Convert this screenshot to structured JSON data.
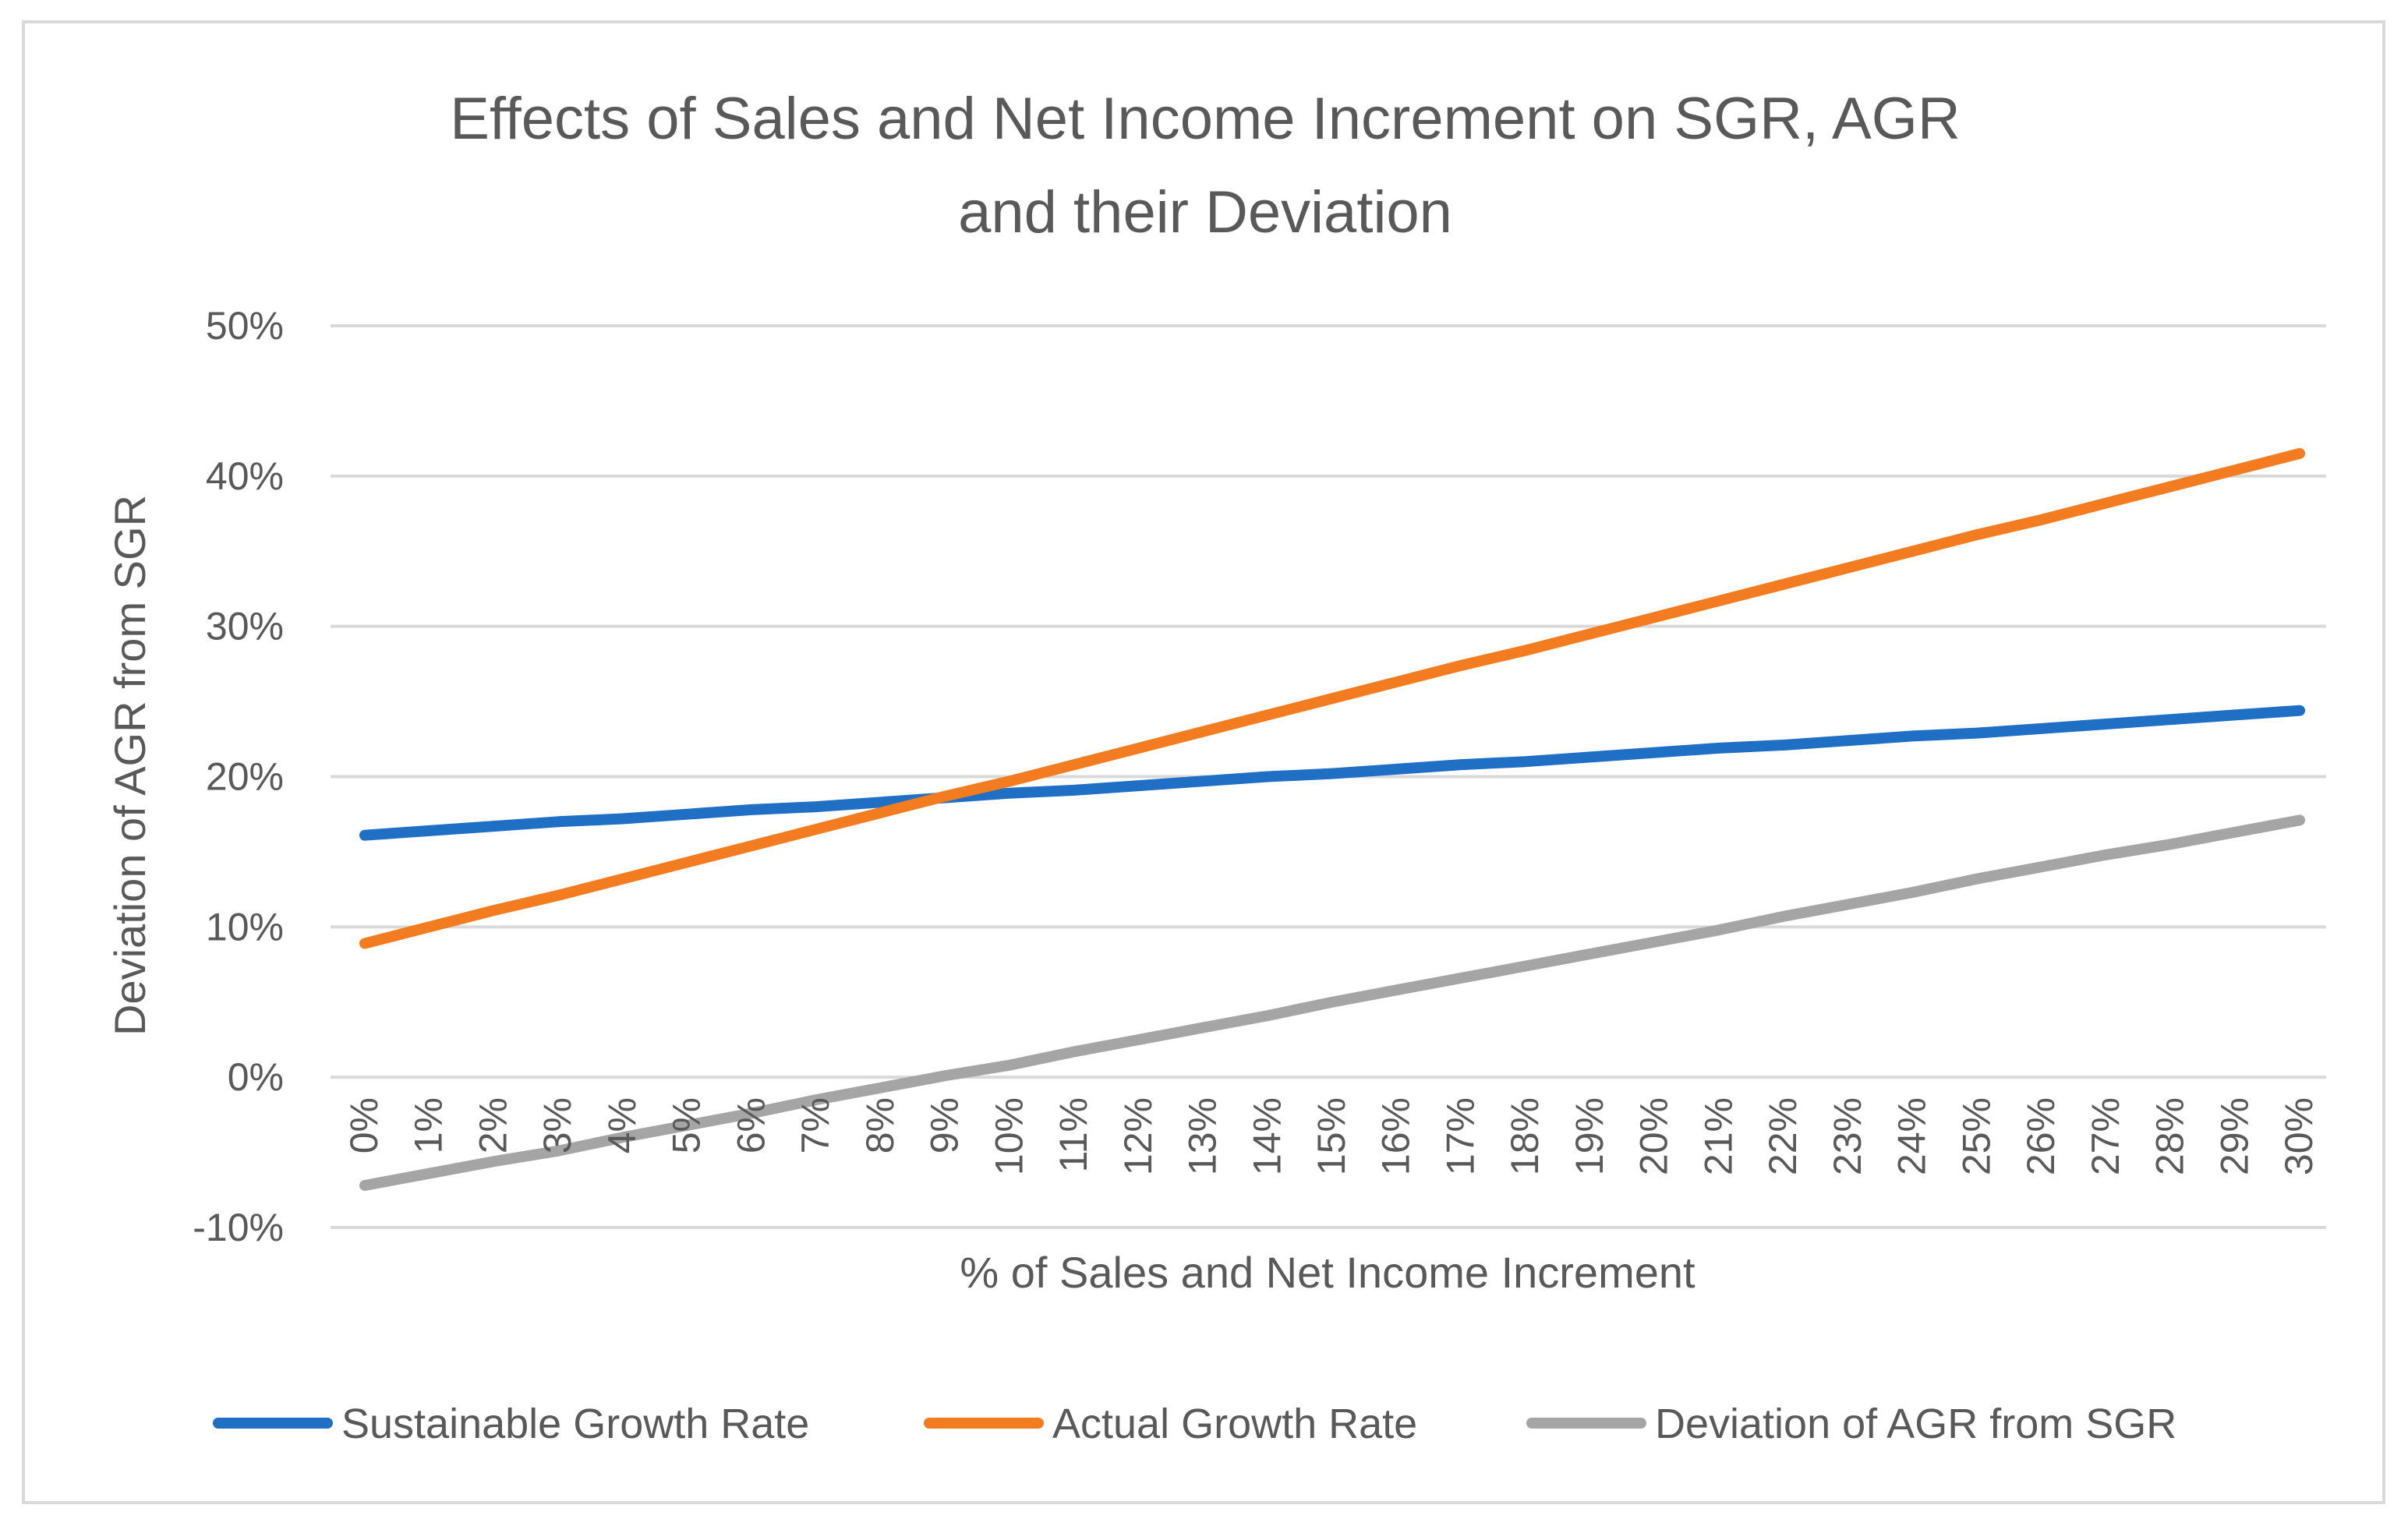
{
  "chart_data": {
    "type": "line",
    "title_lines": [
      "Effects of Sales and Net Income Increment on SGR, AGR",
      "and their Deviation"
    ],
    "xlabel": "% of Sales and Net Income Increment",
    "ylabel": "Deviation of AGR from SGR",
    "ylim": [
      -10,
      50
    ],
    "y_ticks": [
      50,
      40,
      30,
      20,
      10,
      0,
      -10
    ],
    "y_tick_labels": [
      "50%",
      "40%",
      "30%",
      "20%",
      "10%",
      "0%",
      "-10%"
    ],
    "categories": [
      "0%",
      "1%",
      "2%",
      "3%",
      "4%",
      "5%",
      "6%",
      "7%",
      "8%",
      "9%",
      "10%",
      "11%",
      "12%",
      "13%",
      "14%",
      "15%",
      "16%",
      "17%",
      "18%",
      "19%",
      "20%",
      "21%",
      "22%",
      "23%",
      "24%",
      "25%",
      "26%",
      "27%",
      "28%",
      "29%",
      "30%"
    ],
    "grid": true,
    "legend_position": "bottom",
    "series": [
      {
        "name": "Sustainable Growth Rate",
        "color": "#1f6fc5",
        "values": [
          16.1,
          16.4,
          16.7,
          17.0,
          17.2,
          17.5,
          17.8,
          18.0,
          18.3,
          18.6,
          18.9,
          19.1,
          19.4,
          19.7,
          20.0,
          20.2,
          20.5,
          20.8,
          21.0,
          21.3,
          21.6,
          21.9,
          22.1,
          22.4,
          22.7,
          22.9,
          23.2,
          23.5,
          23.8,
          24.1,
          24.4
        ]
      },
      {
        "name": "Actual Growth Rate",
        "color": "#f47c20",
        "values": [
          8.9,
          10.0,
          11.1,
          12.1,
          13.2,
          14.3,
          15.4,
          16.5,
          17.6,
          18.7,
          19.7,
          20.8,
          21.9,
          23.0,
          24.1,
          25.2,
          26.3,
          27.4,
          28.4,
          29.5,
          30.6,
          31.7,
          32.8,
          33.9,
          35.0,
          36.1,
          37.1,
          38.2,
          39.3,
          40.4,
          41.5
        ]
      },
      {
        "name": "Deviation of AGR from SGR",
        "color": "#a5a5a5",
        "values": [
          -7.2,
          -6.4,
          -5.6,
          -4.9,
          -4.0,
          -3.2,
          -2.4,
          -1.5,
          -0.7,
          0.1,
          0.8,
          1.7,
          2.5,
          3.3,
          4.1,
          5.0,
          5.8,
          6.6,
          7.4,
          8.2,
          9.0,
          9.8,
          10.7,
          11.5,
          12.3,
          13.2,
          14.0,
          14.8,
          15.5,
          16.3,
          17.1
        ]
      }
    ]
  }
}
